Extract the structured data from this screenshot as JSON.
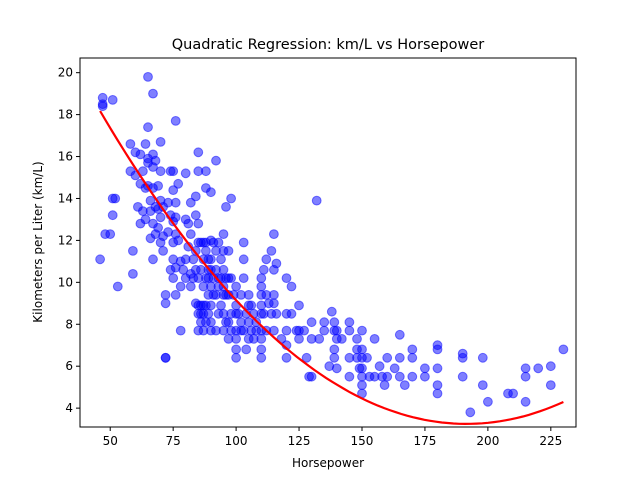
{
  "chart_data": {
    "type": "scatter",
    "title": "Quadratic Regression: km/L vs Horsepower",
    "xlabel": "Horsepower",
    "ylabel": "Kilometers per Liter (km/L)",
    "xlim": [
      38,
      235
    ],
    "ylim": [
      3.1,
      20.7
    ],
    "xticks": [
      50,
      75,
      100,
      125,
      150,
      175,
      200,
      225
    ],
    "yticks": [
      4,
      6,
      8,
      10,
      12,
      14,
      16,
      18,
      20
    ],
    "grid": false,
    "legend": "none",
    "colors": {
      "points": "#0000ff",
      "fit": "#ff0000"
    },
    "points": [
      [
        46,
        11.1
      ],
      [
        47,
        18.8
      ],
      [
        47,
        18.4
      ],
      [
        47,
        18.5
      ],
      [
        48,
        12.3
      ],
      [
        50,
        12.3
      ],
      [
        51,
        18.7
      ],
      [
        51,
        14.0
      ],
      [
        51,
        13.2
      ],
      [
        52,
        14.0
      ],
      [
        53,
        9.8
      ],
      [
        58,
        16.6
      ],
      [
        58,
        15.3
      ],
      [
        59,
        11.5
      ],
      [
        59,
        10.4
      ],
      [
        60,
        15.1
      ],
      [
        60,
        16.2
      ],
      [
        61,
        13.6
      ],
      [
        62,
        16.1
      ],
      [
        62,
        14.7
      ],
      [
        62,
        12.8
      ],
      [
        63,
        15.3
      ],
      [
        63,
        13.4
      ],
      [
        64,
        14.5
      ],
      [
        64,
        16.6
      ],
      [
        64,
        13.0
      ],
      [
        65,
        17.4
      ],
      [
        65,
        19.8
      ],
      [
        65,
        15.9
      ],
      [
        65,
        14.6
      ],
      [
        65,
        15.7
      ],
      [
        66,
        12.1
      ],
      [
        66,
        13.4
      ],
      [
        66,
        13.9
      ],
      [
        67,
        19.0
      ],
      [
        67,
        15.5
      ],
      [
        67,
        16.1
      ],
      [
        67,
        14.5
      ],
      [
        67,
        12.8
      ],
      [
        67,
        11.1
      ],
      [
        68,
        15.8
      ],
      [
        68,
        13.6
      ],
      [
        68,
        12.3
      ],
      [
        69,
        14.6
      ],
      [
        69,
        13.5
      ],
      [
        69,
        12.6
      ],
      [
        70,
        16.7
      ],
      [
        70,
        15.3
      ],
      [
        70,
        13.9
      ],
      [
        70,
        13.1
      ],
      [
        70,
        11.9
      ],
      [
        71,
        13.6
      ],
      [
        71,
        12.2
      ],
      [
        71,
        11.5
      ],
      [
        72,
        9.4
      ],
      [
        72,
        9.0
      ],
      [
        72,
        6.4
      ],
      [
        72,
        6.4
      ],
      [
        73,
        13.8
      ],
      [
        73,
        12.4
      ],
      [
        74,
        15.3
      ],
      [
        74,
        13.2
      ],
      [
        74,
        10.6
      ],
      [
        75,
        15.3
      ],
      [
        75,
        14.4
      ],
      [
        75,
        12.9
      ],
      [
        75,
        11.9
      ],
      [
        75,
        11.1
      ],
      [
        75,
        10.2
      ],
      [
        76,
        17.7
      ],
      [
        76,
        13.8
      ],
      [
        76,
        13.1
      ],
      [
        76,
        12.3
      ],
      [
        76,
        10.7
      ],
      [
        76,
        9.4
      ],
      [
        77,
        14.7
      ],
      [
        77,
        12.0
      ],
      [
        78,
        11.0
      ],
      [
        78,
        9.8
      ],
      [
        78,
        7.7
      ],
      [
        79,
        10.6
      ],
      [
        80,
        15.2
      ],
      [
        80,
        13.0
      ],
      [
        80,
        11.1
      ],
      [
        80,
        10.2
      ],
      [
        81,
        12.8
      ],
      [
        81,
        11.7
      ],
      [
        82,
        13.8
      ],
      [
        82,
        12.3
      ],
      [
        82,
        10.4
      ],
      [
        82,
        9.8
      ],
      [
        83,
        11.1
      ],
      [
        83,
        10.2
      ],
      [
        84,
        14.1
      ],
      [
        84,
        13.2
      ],
      [
        84,
        11.5
      ],
      [
        84,
        10.6
      ],
      [
        84,
        9.0
      ],
      [
        85,
        16.2
      ],
      [
        85,
        15.3
      ],
      [
        85,
        12.8
      ],
      [
        85,
        11.9
      ],
      [
        85,
        10.2
      ],
      [
        85,
        8.9
      ],
      [
        85,
        8.5
      ],
      [
        85,
        7.7
      ],
      [
        86,
        11.9
      ],
      [
        86,
        10.6
      ],
      [
        86,
        8.9
      ],
      [
        86,
        8.1
      ],
      [
        86,
        8.5
      ],
      [
        87,
        11.9
      ],
      [
        87,
        11.1
      ],
      [
        87,
        9.8
      ],
      [
        87,
        8.9
      ],
      [
        87,
        8.5
      ],
      [
        87,
        7.7
      ],
      [
        88,
        15.3
      ],
      [
        88,
        14.5
      ],
      [
        88,
        11.9
      ],
      [
        88,
        11.5
      ],
      [
        88,
        10.2
      ],
      [
        88,
        8.9
      ],
      [
        88,
        8.1
      ],
      [
        89,
        11.1
      ],
      [
        89,
        10.6
      ],
      [
        89,
        10.2
      ],
      [
        89,
        9.4
      ],
      [
        89,
        8.5
      ],
      [
        90,
        14.3
      ],
      [
        90,
        12.0
      ],
      [
        90,
        11.1
      ],
      [
        90,
        10.6
      ],
      [
        90,
        9.8
      ],
      [
        90,
        8.9
      ],
      [
        90,
        8.1
      ],
      [
        90,
        7.7
      ],
      [
        91,
        11.9
      ],
      [
        91,
        10.2
      ],
      [
        91,
        9.4
      ],
      [
        92,
        15.8
      ],
      [
        92,
        11.5
      ],
      [
        92,
        10.6
      ],
      [
        92,
        9.4
      ],
      [
        92,
        7.7
      ],
      [
        93,
        11.9
      ],
      [
        93,
        10.2
      ],
      [
        93,
        9.8
      ],
      [
        93,
        8.5
      ],
      [
        94,
        11.1
      ],
      [
        94,
        10.2
      ],
      [
        94,
        8.9
      ],
      [
        95,
        12.3
      ],
      [
        95,
        11.5
      ],
      [
        95,
        10.6
      ],
      [
        95,
        9.8
      ],
      [
        95,
        9.4
      ],
      [
        95,
        8.5
      ],
      [
        95,
        7.7
      ],
      [
        96,
        13.6
      ],
      [
        96,
        10.2
      ],
      [
        96,
        9.4
      ],
      [
        96,
        8.1
      ],
      [
        97,
        11.5
      ],
      [
        97,
        10.2
      ],
      [
        97,
        9.4
      ],
      [
        97,
        8.1
      ],
      [
        97,
        7.3
      ],
      [
        98,
        14.0
      ],
      [
        98,
        10.2
      ],
      [
        98,
        8.5
      ],
      [
        98,
        7.7
      ],
      [
        99,
        9.4
      ],
      [
        100,
        9.8
      ],
      [
        100,
        8.9
      ],
      [
        100,
        8.5
      ],
      [
        100,
        7.7
      ],
      [
        100,
        7.3
      ],
      [
        100,
        6.8
      ],
      [
        100,
        6.4
      ],
      [
        101,
        8.5
      ],
      [
        102,
        9.4
      ],
      [
        102,
        8.1
      ],
      [
        102,
        7.7
      ],
      [
        103,
        11.9
      ],
      [
        103,
        11.1
      ],
      [
        103,
        10.2
      ],
      [
        103,
        7.7
      ],
      [
        104,
        8.5
      ],
      [
        104,
        6.8
      ],
      [
        105,
        9.4
      ],
      [
        105,
        8.9
      ],
      [
        105,
        8.1
      ],
      [
        105,
        7.3
      ],
      [
        106,
        8.9
      ],
      [
        106,
        7.7
      ],
      [
        107,
        8.5
      ],
      [
        107,
        7.3
      ],
      [
        108,
        8.1
      ],
      [
        108,
        7.7
      ],
      [
        110,
        10.2
      ],
      [
        110,
        9.8
      ],
      [
        110,
        9.4
      ],
      [
        110,
        8.9
      ],
      [
        110,
        8.5
      ],
      [
        110,
        7.7
      ],
      [
        110,
        7.3
      ],
      [
        110,
        6.8
      ],
      [
        110,
        6.4
      ],
      [
        111,
        10.6
      ],
      [
        111,
        8.5
      ],
      [
        112,
        11.1
      ],
      [
        112,
        9.4
      ],
      [
        112,
        7.7
      ],
      [
        113,
        9.0
      ],
      [
        114,
        11.5
      ],
      [
        114,
        8.5
      ],
      [
        115,
        12.3
      ],
      [
        115,
        10.6
      ],
      [
        115,
        9.4
      ],
      [
        115,
        9.0
      ],
      [
        115,
        7.7
      ],
      [
        116,
        10.9
      ],
      [
        116,
        8.5
      ],
      [
        118,
        7.3
      ],
      [
        120,
        10.2
      ],
      [
        120,
        8.5
      ],
      [
        120,
        7.7
      ],
      [
        120,
        7.0
      ],
      [
        120,
        6.4
      ],
      [
        122,
        9.8
      ],
      [
        122,
        8.5
      ],
      [
        124,
        7.7
      ],
      [
        125,
        8.9
      ],
      [
        125,
        7.7
      ],
      [
        125,
        7.3
      ],
      [
        127,
        7.7
      ],
      [
        128,
        6.4
      ],
      [
        129,
        5.5
      ],
      [
        130,
        7.3
      ],
      [
        130,
        5.5
      ],
      [
        130,
        8.1
      ],
      [
        132,
        13.9
      ],
      [
        133,
        7.3
      ],
      [
        135,
        8.1
      ],
      [
        135,
        7.7
      ],
      [
        137,
        6.0
      ],
      [
        138,
        8.6
      ],
      [
        139,
        8.1
      ],
      [
        139,
        7.7
      ],
      [
        139,
        6.8
      ],
      [
        139,
        6.4
      ],
      [
        140,
        7.3
      ],
      [
        140,
        7.7
      ],
      [
        140,
        5.9
      ],
      [
        142,
        7.3
      ],
      [
        145,
        8.1
      ],
      [
        145,
        7.7
      ],
      [
        145,
        6.4
      ],
      [
        145,
        5.5
      ],
      [
        148,
        6.4
      ],
      [
        148,
        7.3
      ],
      [
        148,
        6.8
      ],
      [
        149,
        5.9
      ],
      [
        150,
        7.7
      ],
      [
        150,
        6.8
      ],
      [
        150,
        6.4
      ],
      [
        150,
        5.9
      ],
      [
        150,
        5.5
      ],
      [
        150,
        4.7
      ],
      [
        150,
        5.1
      ],
      [
        152,
        6.4
      ],
      [
        153,
        5.5
      ],
      [
        155,
        5.5
      ],
      [
        155,
        7.3
      ],
      [
        157,
        6.0
      ],
      [
        158,
        5.5
      ],
      [
        159,
        5.1
      ],
      [
        160,
        6.4
      ],
      [
        160,
        5.5
      ],
      [
        163,
        5.9
      ],
      [
        165,
        7.5
      ],
      [
        165,
        6.4
      ],
      [
        165,
        5.5
      ],
      [
        167,
        5.1
      ],
      [
        170,
        6.8
      ],
      [
        170,
        6.4
      ],
      [
        170,
        5.5
      ],
      [
        175,
        5.5
      ],
      [
        175,
        5.9
      ],
      [
        180,
        7.0
      ],
      [
        180,
        6.8
      ],
      [
        180,
        5.9
      ],
      [
        180,
        5.1
      ],
      [
        180,
        4.7
      ],
      [
        190,
        6.6
      ],
      [
        190,
        6.4
      ],
      [
        190,
        5.5
      ],
      [
        193,
        3.8
      ],
      [
        198,
        6.4
      ],
      [
        198,
        5.1
      ],
      [
        200,
        4.3
      ],
      [
        208,
        4.7
      ],
      [
        210,
        4.7
      ],
      [
        215,
        5.9
      ],
      [
        215,
        5.5
      ],
      [
        215,
        4.3
      ],
      [
        220,
        5.9
      ],
      [
        225,
        6.0
      ],
      [
        225,
        5.1
      ],
      [
        230,
        6.8
      ]
    ],
    "fit": {
      "x_range": [
        46,
        230
      ],
      "coefficients": {
        "a": 0.000705,
        "b": -0.27,
        "c": 29.1
      }
    }
  }
}
